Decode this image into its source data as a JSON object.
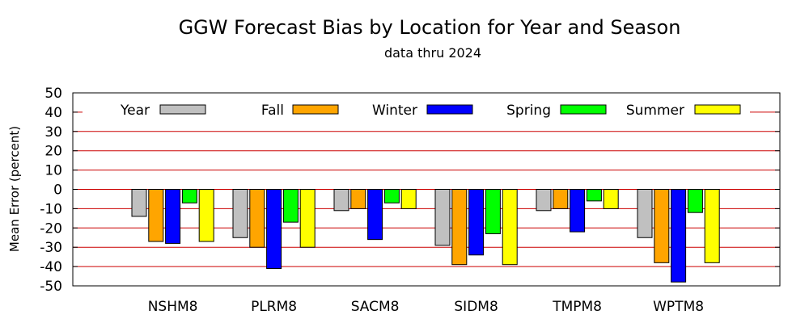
{
  "chart_data": {
    "type": "bar",
    "title": "GGW Forecast Bias by Location for Year and Season",
    "subtitle": "data thru 2024",
    "xlabel": "",
    "ylabel": "Mean Error (percent)",
    "ylim": [
      -50,
      50
    ],
    "yticks": [
      50,
      40,
      30,
      20,
      10,
      0,
      -10,
      -20,
      -30,
      -40,
      -50
    ],
    "grid": true,
    "legend_position": "top",
    "categories": [
      "NSHM8",
      "PLRM8",
      "SACM8",
      "SIDM8",
      "TMPM8",
      "WPTM8"
    ],
    "series": [
      {
        "name": "Year",
        "color": "#c0c0c0",
        "values": [
          -14,
          -25,
          -11,
          -29,
          -11,
          -25
        ]
      },
      {
        "name": "Fall",
        "color": "#ffa500",
        "values": [
          -27,
          -30,
          -10,
          -39,
          -10,
          -38
        ]
      },
      {
        "name": "Winter",
        "color": "#0000ff",
        "values": [
          -28,
          -41,
          -26,
          -34,
          -22,
          -48
        ]
      },
      {
        "name": "Spring",
        "color": "#00ff00",
        "values": [
          -7,
          -17,
          -7,
          -23,
          -6,
          -12
        ]
      },
      {
        "name": "Summer",
        "color": "#ffff00",
        "values": [
          -27,
          -30,
          -10,
          -39,
          -10,
          -38
        ]
      }
    ],
    "gridline_color": "#cc0000"
  }
}
